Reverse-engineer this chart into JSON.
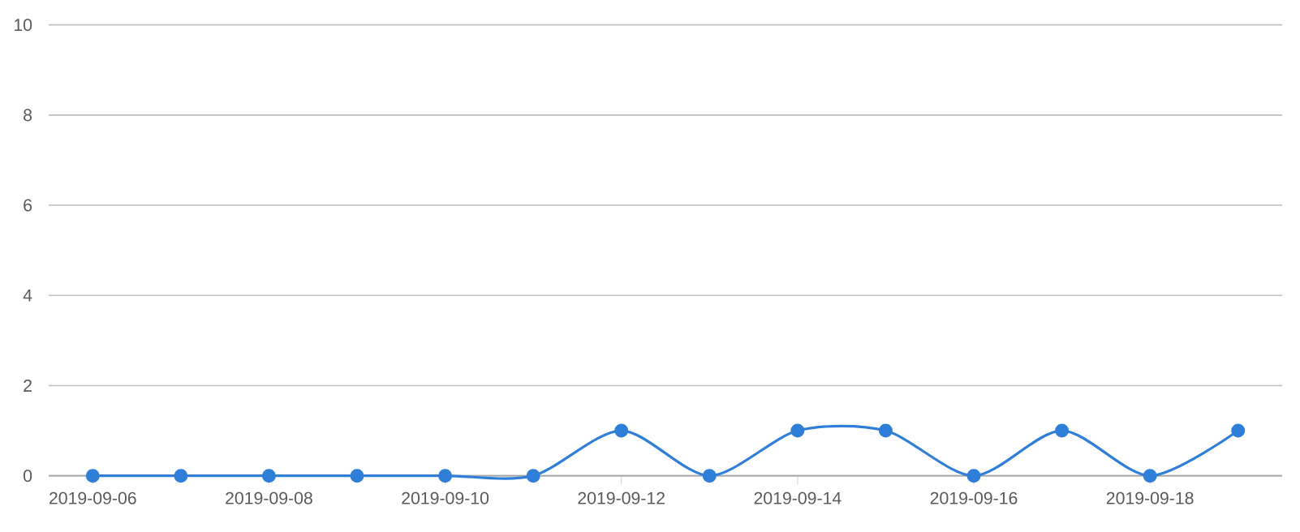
{
  "chart_data": {
    "type": "line",
    "categories": [
      "2019-09-06",
      null,
      "2019-09-08",
      null,
      "2019-09-10",
      null,
      "2019-09-12",
      null,
      "2019-09-14",
      null,
      "2019-09-16",
      null,
      "2019-09-18",
      null
    ],
    "series": [
      {
        "color": "#2f7ed8",
        "values": [
          0,
          0,
          0,
          0,
          0,
          0,
          1,
          0,
          1,
          1,
          0,
          1,
          0,
          1
        ]
      }
    ],
    "ylim": [
      0,
      10
    ],
    "yticks": [
      0,
      2,
      4,
      6,
      8,
      10
    ],
    "grid": "y",
    "marker": "circle",
    "line_style": "solid"
  }
}
